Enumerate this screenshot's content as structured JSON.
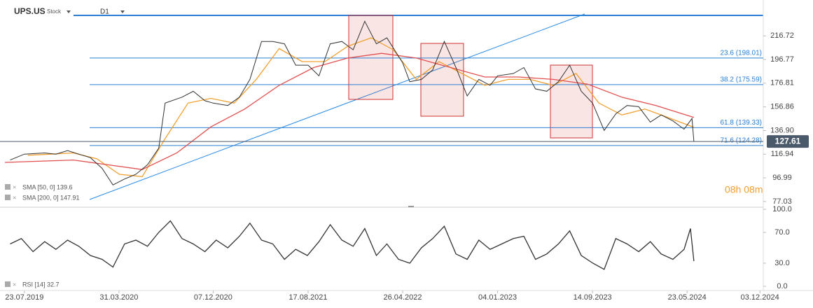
{
  "chart_data": [
    {
      "type": "line",
      "title": "UPS.US",
      "subtitle": "Stock",
      "timeframe": "D1",
      "x": [
        "15.06.2019",
        "23.07.2019",
        "15.09.2019",
        "15.10.2019",
        "15.11.2019",
        "15.12.2019",
        "15.01.2020",
        "15.02.2020",
        "15.03.2020",
        "15.04.2020",
        "15.05.2020",
        "15.06.2020",
        "15.07.2020",
        "01.08.2020",
        "15.09.2020",
        "15.10.2020",
        "15.11.2020",
        "07.12.2020",
        "15.01.2021",
        "15.02.2021",
        "15.03.2021",
        "15.04.2021",
        "15.05.2021",
        "15.06.2021",
        "15.07.2021",
        "17.08.2021",
        "15.09.2021",
        "15.10.2021",
        "15.11.2021",
        "15.12.2021",
        "15.01.2022",
        "15.02.2022",
        "15.03.2022",
        "26.04.2022",
        "15.05.2022",
        "15.06.2022",
        "15.07.2022",
        "15.08.2022",
        "15.09.2022",
        "15.10.2022",
        "15.11.2022",
        "15.12.2022",
        "04.01.2023",
        "15.02.2023",
        "15.03.2023",
        "15.04.2023",
        "15.05.2023",
        "15.06.2023",
        "15.07.2023",
        "15.08.2023",
        "14.09.2023",
        "15.10.2023",
        "15.11.2023",
        "15.12.2023",
        "15.01.2024",
        "15.02.2024",
        "15.03.2024",
        "15.04.2024",
        "15.05.2024",
        "05.06.2024",
        "10.06.2024"
      ],
      "values": [
        112,
        117,
        118,
        117,
        120,
        117,
        114,
        105,
        91,
        96,
        100,
        108,
        122,
        160,
        165,
        170,
        162,
        160,
        158,
        165,
        180,
        212,
        212,
        210,
        192,
        192,
        183,
        210,
        212,
        205,
        229,
        210,
        215,
        194,
        178,
        180,
        188,
        212,
        190,
        166,
        180,
        175,
        183,
        185,
        190,
        172,
        170,
        178,
        192,
        170,
        160,
        137,
        151,
        158,
        157,
        144,
        150,
        145,
        138,
        147,
        127.61
      ],
      "color": "#333333",
      "series": [
        {
          "name": "SMA [50, 0] 139.6",
          "color": "#f0a030",
          "x": [
            "01.08.2019",
            "01.10.2019",
            "01.12.2019",
            "01.02.2020",
            "01.04.2020",
            "01.06.2020",
            "01.08.2020",
            "01.10.2020",
            "01.12.2020",
            "01.02.2021",
            "01.04.2021",
            "01.06.2021",
            "01.08.2021",
            "01.10.2021",
            "01.12.2021",
            "01.02.2022",
            "01.04.2022",
            "01.06.2022",
            "01.08.2022",
            "01.10.2022",
            "01.12.2022",
            "01.02.2023",
            "01.04.2023",
            "01.06.2023",
            "01.08.2023",
            "01.10.2023",
            "01.12.2023",
            "01.02.2024",
            "01.04.2024",
            "10.06.2024"
          ],
          "values": [
            116,
            117,
            118,
            113,
            100,
            98,
            130,
            160,
            164,
            160,
            180,
            206,
            195,
            195,
            208,
            215,
            205,
            180,
            195,
            185,
            175,
            180,
            180,
            175,
            185,
            160,
            150,
            155,
            148,
            139.6
          ]
        },
        {
          "name": "SMA [200, 0] 147.91",
          "color": "#e05050",
          "x": [
            "01.06.2019",
            "01.12.2019",
            "01.03.2020",
            "01.06.2020",
            "01.09.2020",
            "01.12.2020",
            "01.03.2021",
            "01.06.2021",
            "01.09.2021",
            "01.12.2021",
            "01.03.2022",
            "01.06.2022",
            "01.09.2022",
            "01.12.2022",
            "01.03.2023",
            "01.06.2023",
            "01.09.2023",
            "01.12.2023",
            "01.03.2024",
            "10.06.2024"
          ],
          "values": [
            110,
            112,
            108,
            104,
            118,
            140,
            155,
            175,
            190,
            198,
            202,
            198,
            190,
            182,
            182,
            180,
            176,
            165,
            158,
            147.91
          ]
        }
      ],
      "xlim": [
        "19.05.2019",
        "12.12.2024"
      ],
      "ylim": [
        74,
        244
      ],
      "yticks": [
        77.03,
        96.99,
        116.94,
        {
          "value": 136.9,
          "label": "136.90"
        },
        156.86,
        176.81,
        196.77,
        216.72
      ],
      "fib_levels": [
        {
          "value": 198.01,
          "label": "23.6 (198.01)"
        },
        {
          "value": 175.59,
          "label": "38.2 (175.59)"
        },
        {
          "value": 139.33,
          "label": "61.8 (139.33)"
        },
        {
          "value": 124.28,
          "label": "71.6 (124.28)"
        }
      ],
      "last_price": 127.61,
      "countdown": "08h 08m"
    },
    {
      "type": "line",
      "series": [
        {
          "name": "RSI [14] 32.7",
          "color": "#333333",
          "x": [
            "15.06.2019",
            "15.07.2019",
            "15.08.2019",
            "15.09.2019",
            "15.10.2019",
            "15.11.2019",
            "15.12.2019",
            "15.01.2020",
            "15.02.2020",
            "15.03.2020",
            "15.04.2020",
            "15.05.2020",
            "15.06.2020",
            "15.07.2020",
            "15.08.2020",
            "15.09.2020",
            "15.10.2020",
            "15.11.2020",
            "15.12.2020",
            "15.01.2021",
            "15.02.2021",
            "15.03.2021",
            "15.04.2021",
            "15.05.2021",
            "15.06.2021",
            "15.07.2021",
            "15.08.2021",
            "15.09.2021",
            "15.10.2021",
            "15.11.2021",
            "15.12.2021",
            "15.01.2022",
            "15.02.2022",
            "15.03.2022",
            "15.04.2022",
            "15.05.2022",
            "15.06.2022",
            "15.07.2022",
            "15.08.2022",
            "15.09.2022",
            "15.10.2022",
            "15.11.2022",
            "15.12.2022",
            "15.01.2023",
            "15.02.2023",
            "15.03.2023",
            "15.04.2023",
            "15.05.2023",
            "15.06.2023",
            "15.07.2023",
            "15.08.2023",
            "15.09.2023",
            "15.10.2023",
            "15.11.2023",
            "15.12.2023",
            "15.01.2024",
            "15.02.2024",
            "15.03.2024",
            "15.04.2024",
            "15.05.2024",
            "01.06.2024",
            "10.06.2024"
          ],
          "values": [
            55,
            62,
            45,
            58,
            48,
            60,
            52,
            40,
            35,
            25,
            55,
            60,
            52,
            70,
            85,
            62,
            55,
            45,
            60,
            50,
            65,
            82,
            60,
            55,
            35,
            48,
            40,
            58,
            80,
            60,
            52,
            75,
            40,
            55,
            35,
            30,
            50,
            62,
            78,
            42,
            35,
            60,
            48,
            55,
            62,
            65,
            35,
            42,
            55,
            72,
            40,
            30,
            22,
            62,
            55,
            45,
            58,
            42,
            35,
            48,
            75,
            32.7
          ]
        }
      ],
      "xlim": [
        "19.05.2019",
        "12.12.2024"
      ],
      "ylim": [
        0,
        100
      ],
      "yticks": [
        {
          "value": 100,
          "label": "100.0"
        },
        {
          "value": 70,
          "label": "70.0"
        },
        {
          "value": 30,
          "label": "30.0"
        },
        {
          "value": 0,
          "label": "0.0"
        }
      ],
      "xticks": [
        "23.07.2019",
        "31.03.2020",
        "07.12.2020",
        "17.08.2021",
        "26.04.2022",
        "04.01.2023",
        "14.09.2023",
        "23.05.2024",
        "03.12.2024"
      ]
    }
  ]
}
